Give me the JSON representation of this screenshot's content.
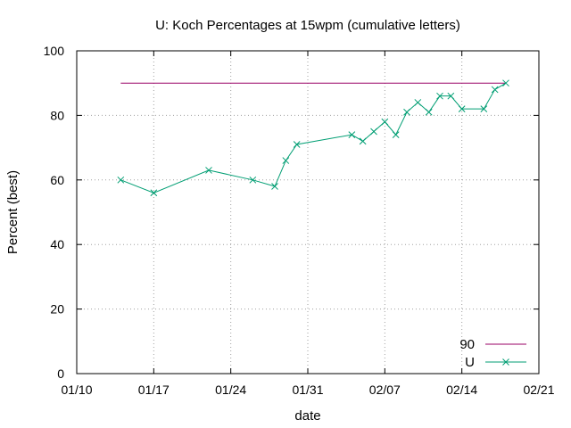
{
  "chart_data": {
    "type": "line",
    "title": "U: Koch Percentages at 15wpm (cumulative letters)",
    "xlabel": "date",
    "ylabel": "Percent (best)",
    "xlim": [
      "2019-01-10",
      "2019-02-21"
    ],
    "ylim": [
      0,
      100
    ],
    "x_ticks": [
      {
        "date": "2019-01-10",
        "label": "01/10"
      },
      {
        "date": "2019-01-17",
        "label": "01/17"
      },
      {
        "date": "2019-01-24",
        "label": "01/24"
      },
      {
        "date": "2019-01-31",
        "label": "01/31"
      },
      {
        "date": "2019-02-07",
        "label": "02/07"
      },
      {
        "date": "2019-02-14",
        "label": "02/14"
      },
      {
        "date": "2019-02-21",
        "label": "02/21"
      }
    ],
    "y_ticks": [
      0,
      20,
      40,
      60,
      80,
      100
    ],
    "grid": true,
    "legend_position": "bottom-right",
    "series": [
      {
        "name": "90",
        "color": "#990066",
        "marker": "none",
        "points": [
          {
            "x": "2019-01-14",
            "y": 90
          },
          {
            "x": "2019-02-18",
            "y": 90
          }
        ]
      },
      {
        "name": "U",
        "color": "#009e73",
        "marker": "x",
        "points": [
          {
            "x": "2019-01-14",
            "y": 60
          },
          {
            "x": "2019-01-17",
            "y": 56
          },
          {
            "x": "2019-01-22",
            "y": 63
          },
          {
            "x": "2019-01-26",
            "y": 60
          },
          {
            "x": "2019-01-28",
            "y": 58
          },
          {
            "x": "2019-01-29",
            "y": 66
          },
          {
            "x": "2019-01-30",
            "y": 71
          },
          {
            "x": "2019-02-04",
            "y": 74
          },
          {
            "x": "2019-02-05",
            "y": 72
          },
          {
            "x": "2019-02-06",
            "y": 75
          },
          {
            "x": "2019-02-07",
            "y": 78
          },
          {
            "x": "2019-02-08",
            "y": 74
          },
          {
            "x": "2019-02-09",
            "y": 81
          },
          {
            "x": "2019-02-10",
            "y": 84
          },
          {
            "x": "2019-02-11",
            "y": 81
          },
          {
            "x": "2019-02-12",
            "y": 86
          },
          {
            "x": "2019-02-13",
            "y": 86
          },
          {
            "x": "2019-02-14",
            "y": 82
          },
          {
            "x": "2019-02-16",
            "y": 82
          },
          {
            "x": "2019-02-17",
            "y": 88
          },
          {
            "x": "2019-02-18",
            "y": 90
          }
        ]
      }
    ]
  }
}
